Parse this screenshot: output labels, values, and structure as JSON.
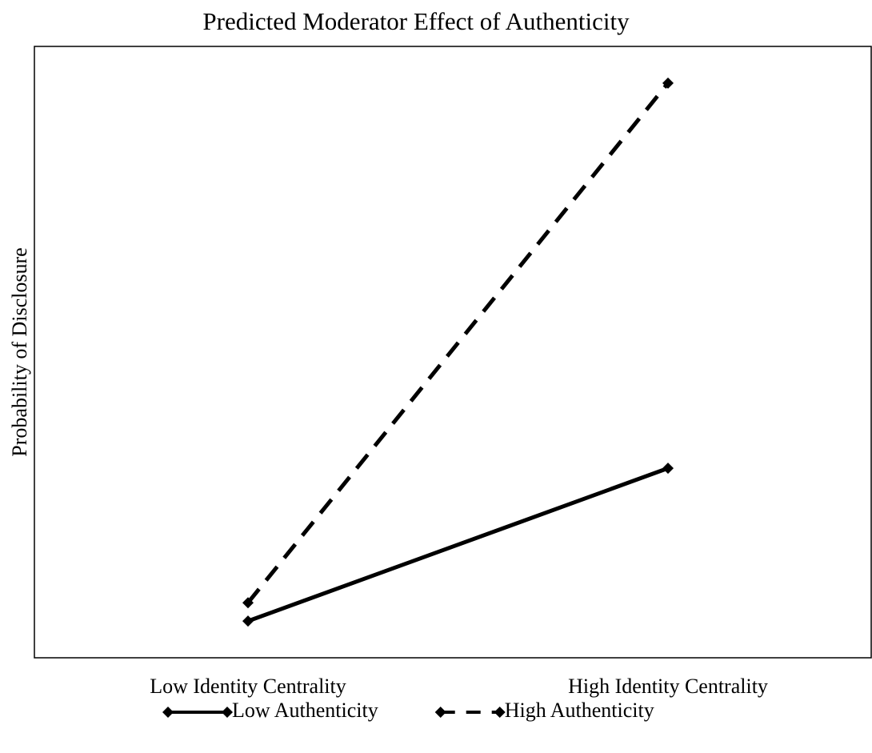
{
  "chart_data": {
    "type": "line",
    "title": "Predicted Moderator Effect of Authenticity",
    "y_label": "Probability of Disclosure",
    "categories": [
      "Low Identity Centrality",
      "High Identity Centrality"
    ],
    "series": [
      {
        "name": "Low Authenticity",
        "color": "#000000",
        "dashed": false,
        "values": [
          6,
          31
        ]
      },
      {
        "name": "High Authenticity",
        "color": "#000000",
        "dashed": true,
        "values": [
          9,
          94
        ]
      }
    ],
    "ylim": [
      0,
      100
    ]
  }
}
